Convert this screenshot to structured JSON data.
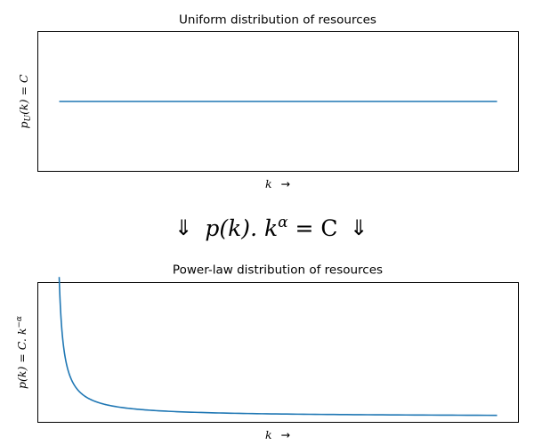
{
  "chart_data": [
    {
      "type": "line",
      "title": "Uniform distribution of resources",
      "xlabel": "k",
      "xlabel_arrow": "→",
      "ylabel": "p_U(k) = C",
      "ylabel_parts": {
        "base": "p",
        "sub": "U",
        "rest": "(k) = C"
      },
      "x": [
        1,
        100
      ],
      "series": [
        {
          "values": [
            1,
            1
          ],
          "color": "#1f77b4"
        }
      ],
      "ylim": [
        0.5,
        1.5
      ],
      "grid": false,
      "ticks": false
    },
    {
      "type": "line",
      "title": "Power-law distribution of resources",
      "xlabel": "k",
      "xlabel_arrow": "→",
      "ylabel": "p(k) = C. k^-α",
      "ylabel_parts": {
        "base": "p(k) = C. k",
        "sup": "−α"
      },
      "function": "C * k^-alpha",
      "x_range": [
        1,
        100
      ],
      "alpha": 1,
      "C": 1,
      "series": [
        {
          "color": "#1f77b4"
        }
      ],
      "ylim": [
        -0.04,
        0.96
      ],
      "grid": false,
      "ticks": false
    }
  ],
  "equation": {
    "left_arrow": "⇓",
    "lhs": "p(k). k",
    "exponent": "α",
    "rhs": " = C",
    "right_arrow": "⇓"
  }
}
